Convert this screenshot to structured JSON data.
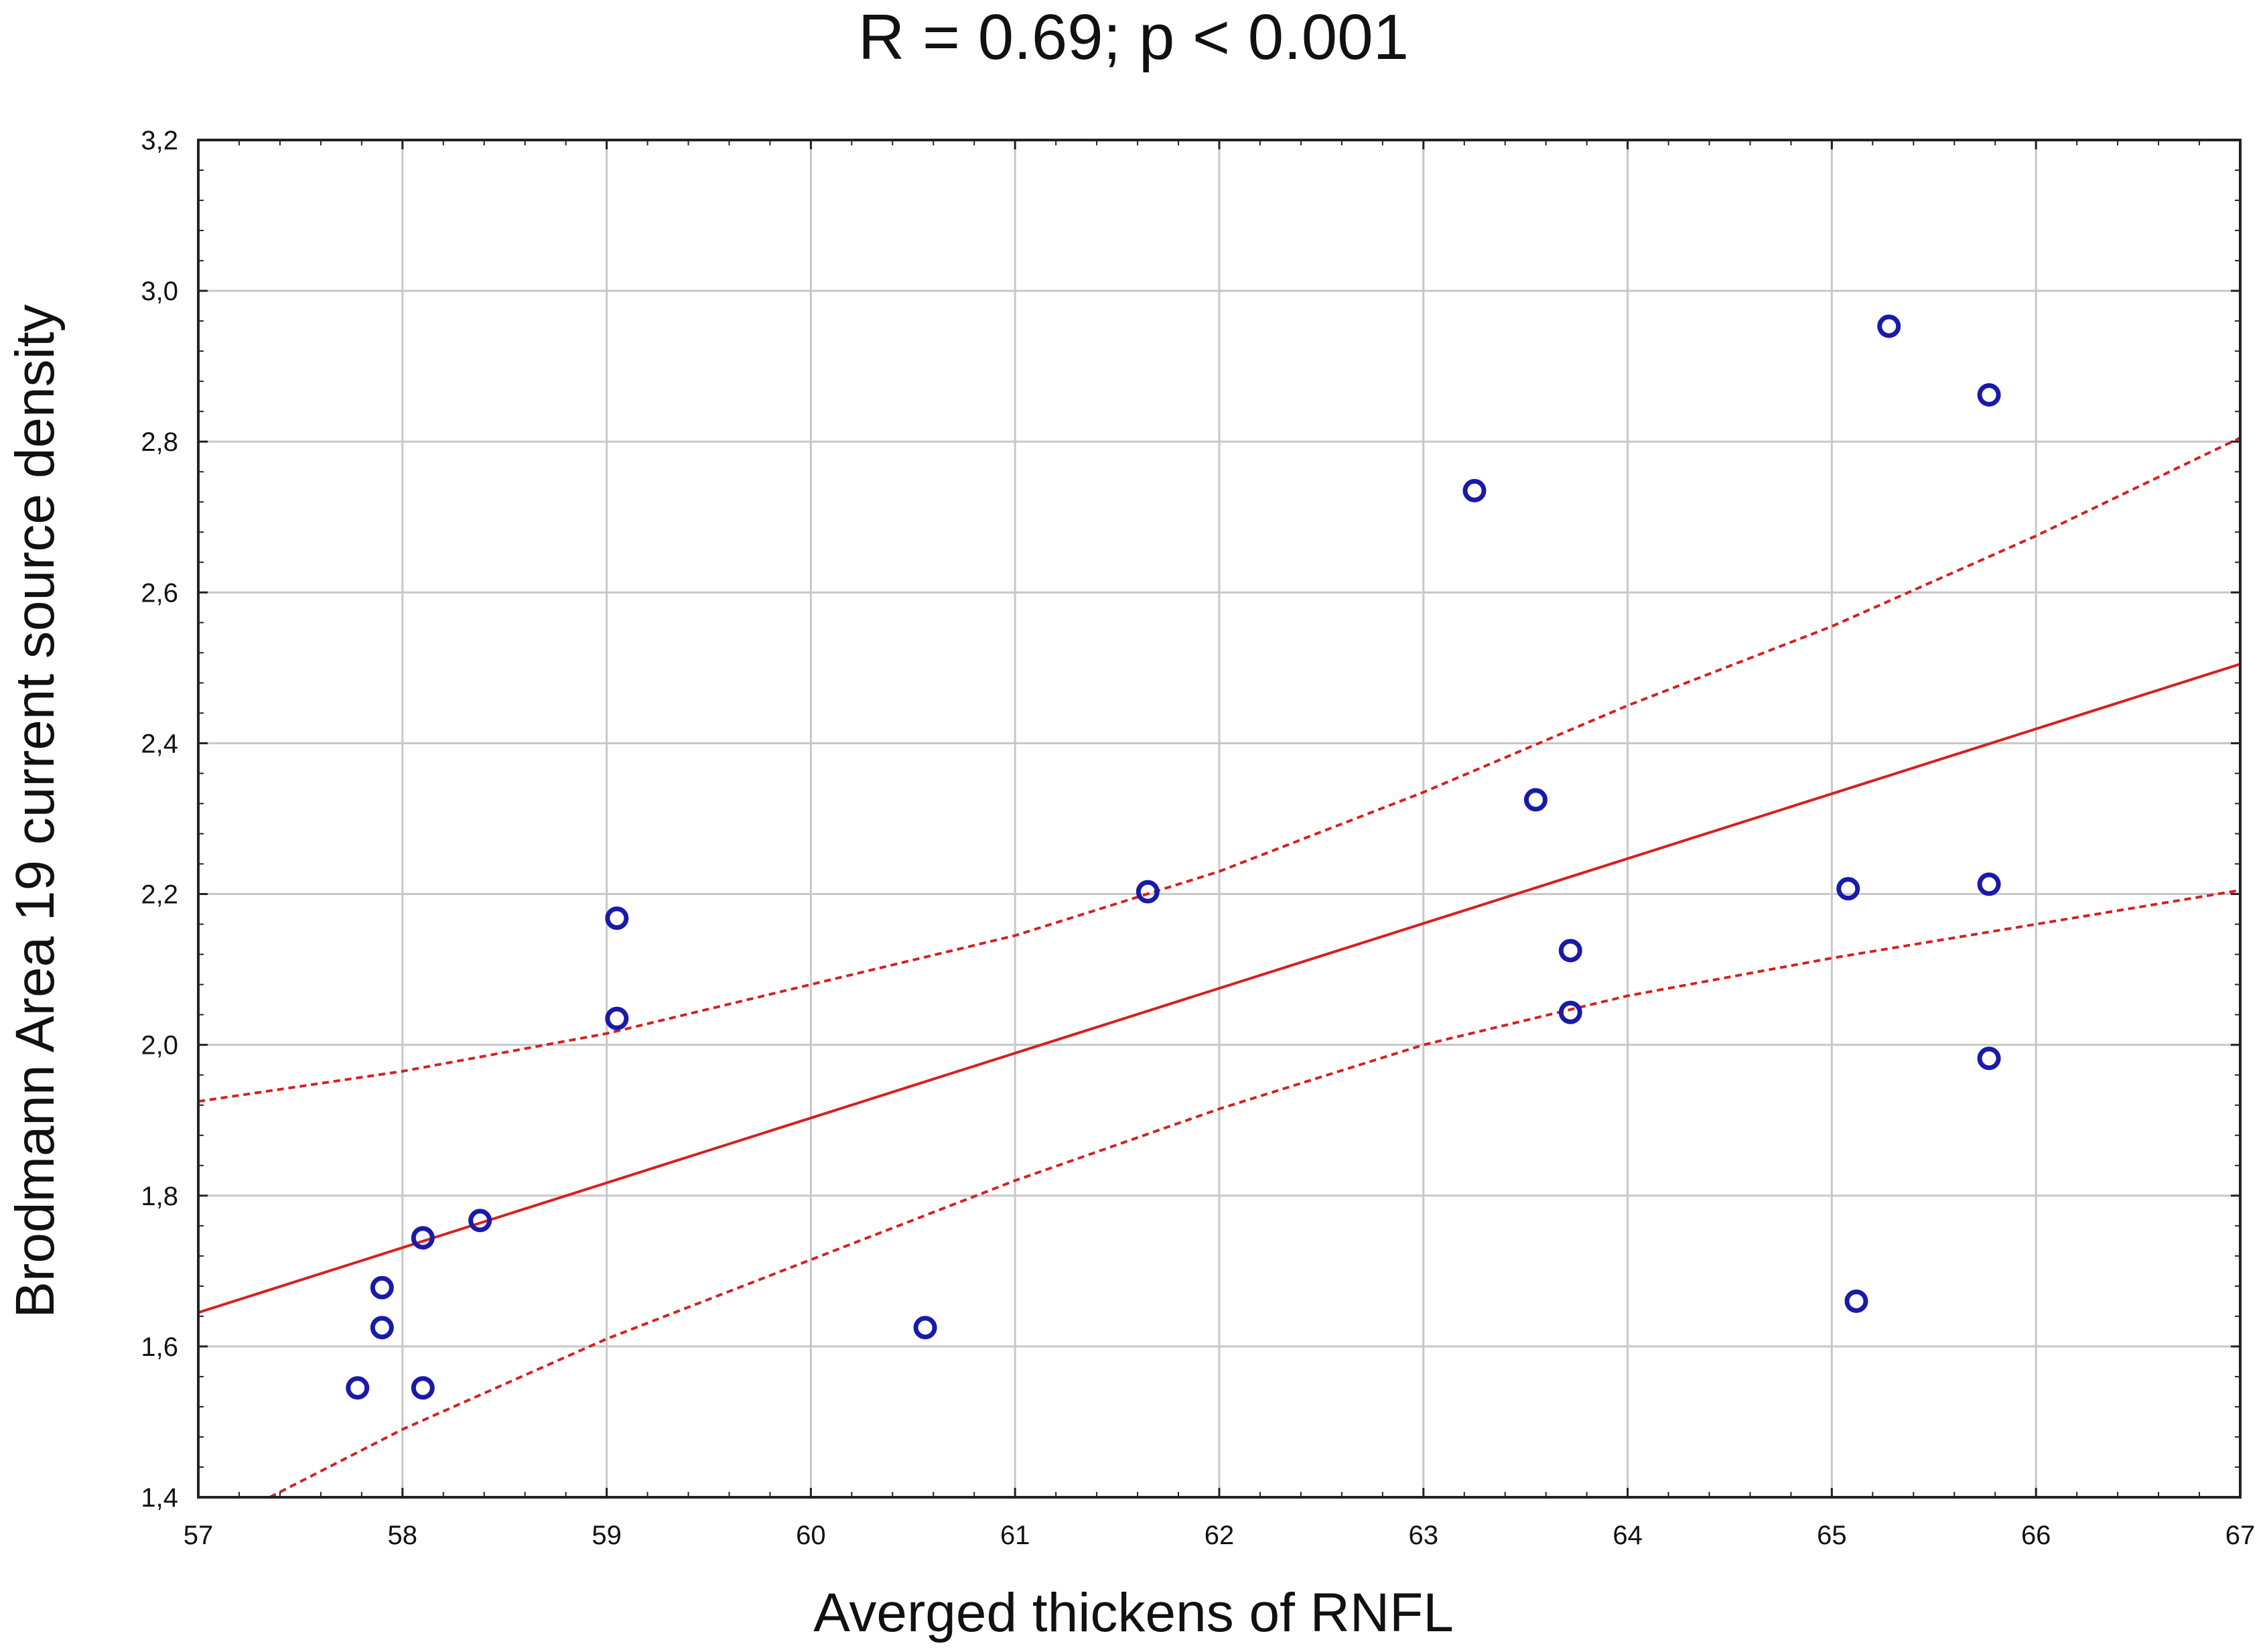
{
  "chart_data": {
    "type": "scatter",
    "title": "R = 0.69; p < 0.001",
    "xlabel": "Averged thickens of RNFL",
    "ylabel": "Brodmann Area 19 current source density",
    "xlim": [
      57,
      67
    ],
    "ylim": [
      1.4,
      3.2
    ],
    "xticks": [
      57,
      58,
      59,
      60,
      61,
      62,
      63,
      64,
      65,
      66,
      67
    ],
    "xtick_labels": [
      "57",
      "58",
      "59",
      "60",
      "61",
      "62",
      "63",
      "64",
      "65",
      "66",
      "67"
    ],
    "yticks": [
      1.4,
      1.6,
      1.8,
      2.0,
      2.2,
      2.4,
      2.6,
      2.8,
      3.0,
      3.2
    ],
    "ytick_labels": [
      "1,4",
      "1,6",
      "1,8",
      "2,0",
      "2,2",
      "2,4",
      "2,6",
      "2,8",
      "3,0",
      "3,2"
    ],
    "grid": true,
    "points": [
      {
        "x": 57.78,
        "y": 1.545
      },
      {
        "x": 57.9,
        "y": 1.625
      },
      {
        "x": 57.9,
        "y": 1.678
      },
      {
        "x": 58.1,
        "y": 1.545
      },
      {
        "x": 58.1,
        "y": 1.744
      },
      {
        "x": 58.38,
        "y": 1.767
      },
      {
        "x": 59.05,
        "y": 2.035
      },
      {
        "x": 59.05,
        "y": 2.168
      },
      {
        "x": 60.56,
        "y": 1.625
      },
      {
        "x": 61.65,
        "y": 2.203
      },
      {
        "x": 63.25,
        "y": 2.735
      },
      {
        "x": 63.55,
        "y": 2.325
      },
      {
        "x": 63.72,
        "y": 2.125
      },
      {
        "x": 63.72,
        "y": 2.043
      },
      {
        "x": 65.08,
        "y": 2.207
      },
      {
        "x": 65.12,
        "y": 1.66
      },
      {
        "x": 65.28,
        "y": 2.953
      },
      {
        "x": 65.77,
        "y": 2.862
      },
      {
        "x": 65.77,
        "y": 2.213
      },
      {
        "x": 65.77,
        "y": 1.982
      }
    ],
    "fit_line": {
      "x": [
        57,
        67
      ],
      "y": [
        1.645,
        2.505
      ]
    },
    "ci_upper": {
      "x": [
        57,
        58,
        59,
        60,
        61,
        62,
        63,
        64,
        65,
        66,
        67
      ],
      "y": [
        1.925,
        1.965,
        2.015,
        2.08,
        2.145,
        2.23,
        2.335,
        2.45,
        2.555,
        2.675,
        2.805
      ]
    },
    "ci_lower": {
      "x": [
        57.35,
        58,
        59,
        60,
        61,
        62,
        63,
        64,
        65,
        66,
        67
      ],
      "y": [
        1.4,
        1.49,
        1.61,
        1.715,
        1.82,
        1.915,
        2.0,
        2.065,
        2.115,
        2.16,
        2.205
      ]
    },
    "colors": {
      "points": "#1a1aaa",
      "fit": "#d62020",
      "ci": "#d62020",
      "grid": "#c8c8c8",
      "frame": "#222222"
    }
  }
}
